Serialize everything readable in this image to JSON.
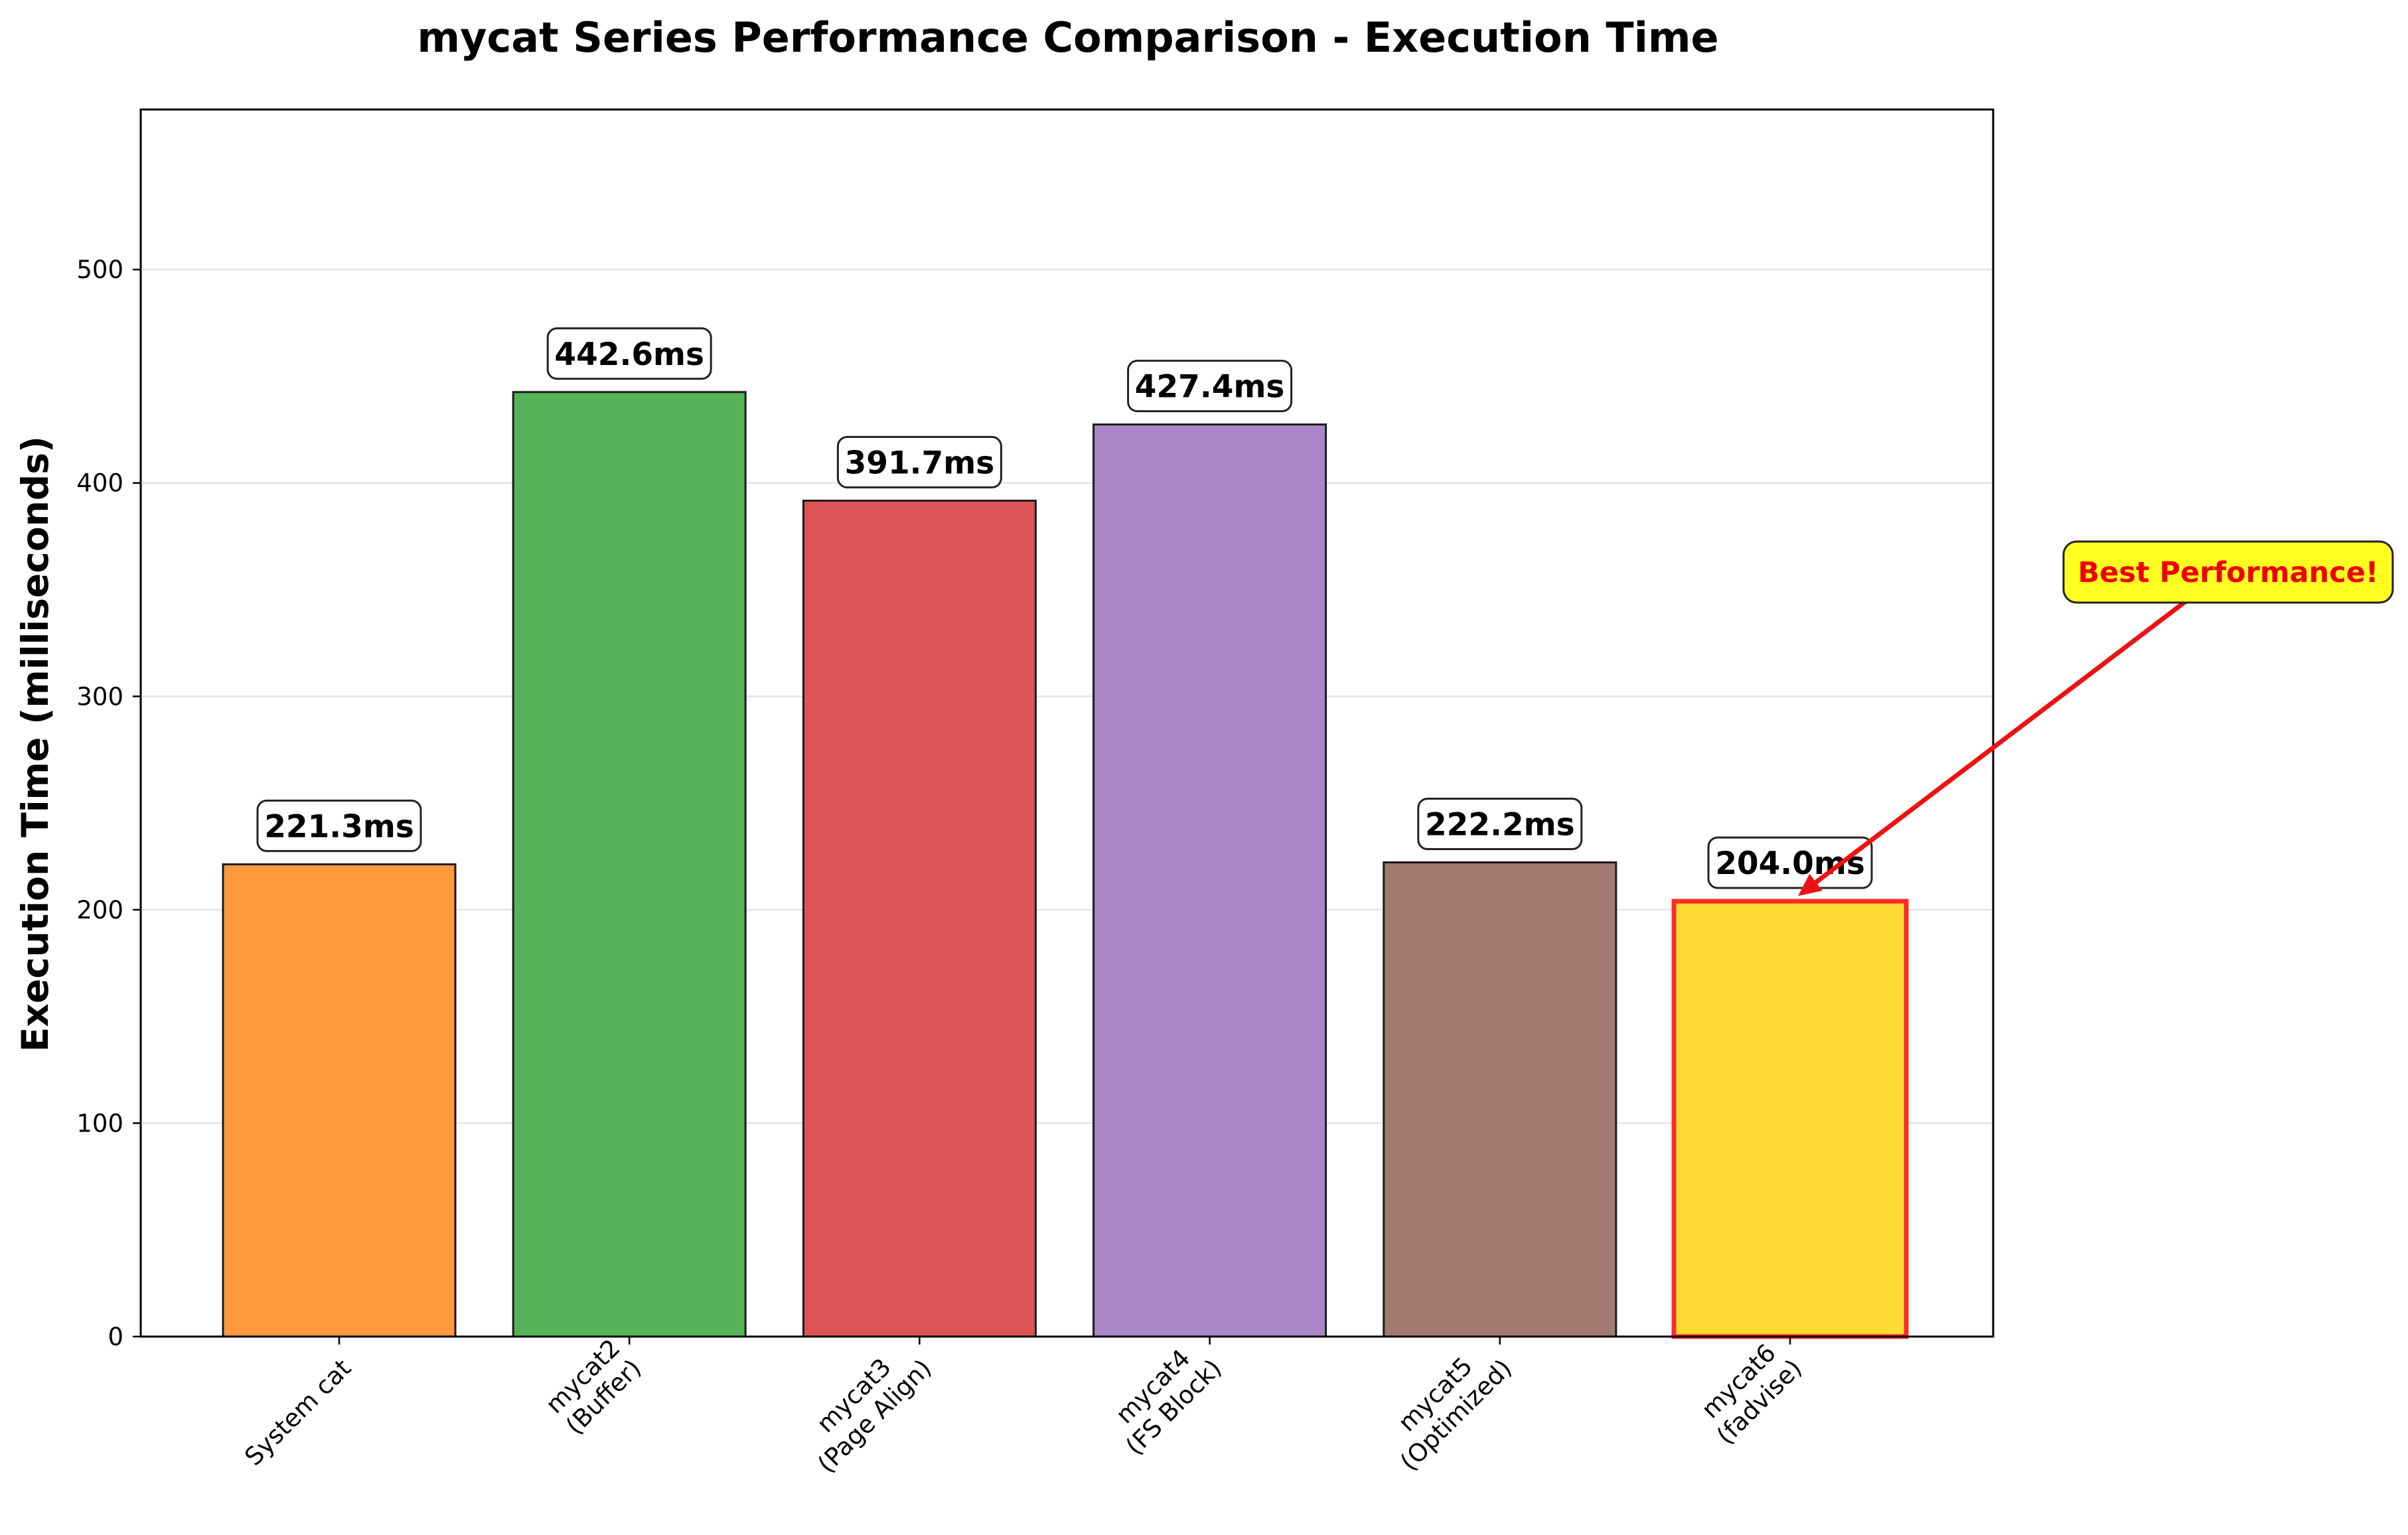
{
  "chart_data": {
    "type": "bar",
    "title": "mycat Series Performance Comparison - Execution Time",
    "xlabel": "",
    "ylabel": "Execution Time (milliseconds)",
    "ylim": [
      0,
      575
    ],
    "yticks": [
      0,
      100,
      200,
      300,
      400,
      500
    ],
    "grid": "y",
    "categories": [
      [
        "System cat"
      ],
      [
        "mycat2",
        "(Buffer)"
      ],
      [
        "mycat3",
        "(Page Align)"
      ],
      [
        "mycat4",
        "(FS Block)"
      ],
      [
        "mycat5",
        "(Optimized)"
      ],
      [
        "mycat6",
        "(fadvise)"
      ]
    ],
    "values": [
      221.3,
      442.6,
      391.7,
      427.4,
      222.2,
      204.0
    ],
    "value_labels": [
      "221.3ms",
      "442.6ms",
      "391.7ms",
      "427.4ms",
      "222.2ms",
      "204.0ms"
    ],
    "colors": [
      "#ff983f",
      "#57b357",
      "#de5356",
      "#a886c8",
      "#a27a70",
      "#ffdc33"
    ],
    "highlight_index": 5,
    "highlight_edge_color": "#ff2a2a",
    "annotation": {
      "text": "Best Performance!",
      "target_index": 5,
      "target_value": 204.0,
      "text_color": "#ee0000",
      "box_color": "#ffff22",
      "arrow_color": "#ee1111"
    }
  }
}
